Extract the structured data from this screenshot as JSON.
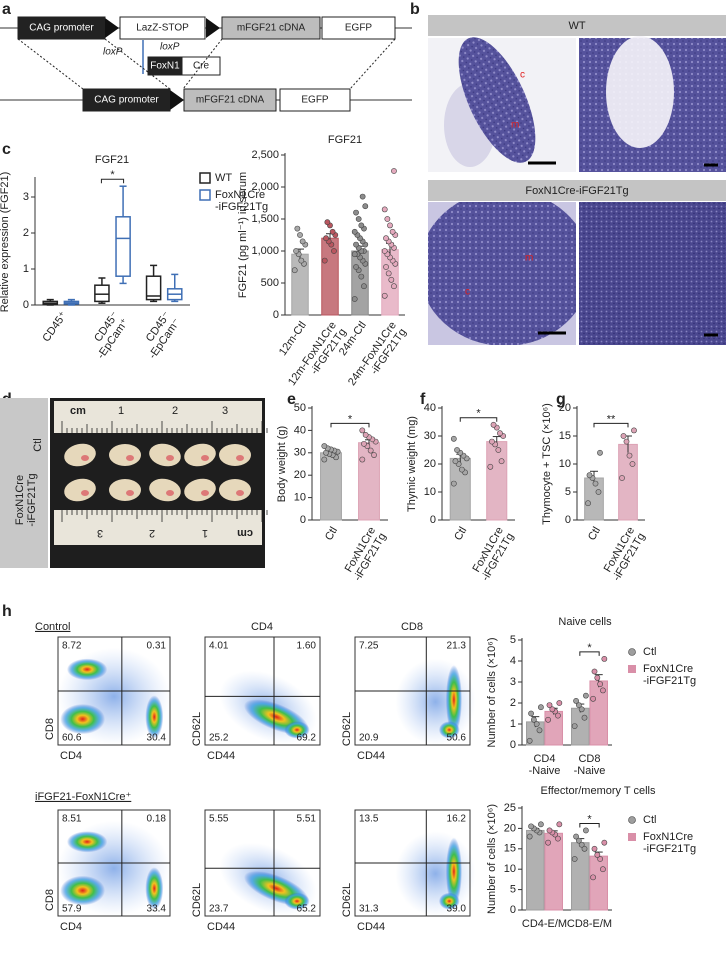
{
  "panel_labels": [
    "a",
    "b",
    "c",
    "d",
    "e",
    "f",
    "g",
    "h"
  ],
  "construct": {
    "row1": [
      "CAG promoter",
      "LazZ-STOP",
      "mFGF21 cDNA",
      "EGFP"
    ],
    "loxp": [
      "loxP",
      "loxP"
    ],
    "driver": [
      "FoxN1",
      "Cre"
    ],
    "row2": [
      "CAG promoter",
      "mFGF21 cDNA",
      "EGFP"
    ]
  },
  "histology": {
    "groups": [
      "WT",
      "FoxN1Cre-iFGF21Tg"
    ],
    "region_labels": [
      [
        "c",
        "m"
      ],
      [
        "m",
        "c"
      ]
    ]
  },
  "photo": {
    "groups": [
      "Ctl",
      "FoxN1Cre-iFGF21Tg"
    ],
    "ruler_unit": "cm",
    "ruler_marks": [
      "1",
      "2",
      "3"
    ]
  },
  "flow": {
    "groups": [
      "Control",
      "iFGF21-FoxN1Cre⁺"
    ],
    "titles": [
      "CD4",
      "CD8"
    ],
    "plots": [
      {
        "x": "CD4",
        "y": "CD8",
        "quadrants": [
          "8.72",
          "0.31",
          "60.6",
          "30.4"
        ]
      },
      {
        "x": "CD44",
        "y": "CD62L",
        "quadrants": [
          "4.01",
          "1.60",
          "25.2",
          "69.2"
        ]
      },
      {
        "x": "CD44",
        "y": "CD62L",
        "quadrants": [
          "7.25",
          "21.3",
          "20.9",
          "50.6"
        ]
      },
      {
        "x": "CD4",
        "y": "CD8",
        "quadrants": [
          "8.51",
          "0.18",
          "57.9",
          "33.4"
        ]
      },
      {
        "x": "CD44",
        "y": "CD62L",
        "quadrants": [
          "5.55",
          "5.51",
          "23.7",
          "65.2"
        ]
      },
      {
        "x": "CD44",
        "y": "CD62L",
        "quadrants": [
          "13.5",
          "16.2",
          "31.3",
          "39.0"
        ]
      }
    ]
  },
  "chart_data": [
    {
      "type": "box",
      "title": "FGF21",
      "ylabel": "Relative expression (FGF21)",
      "categories": [
        "CD45⁺",
        "CD45⁻-EpCam⁺",
        "CD45⁻-EpCam⁻"
      ],
      "series": [
        {
          "name": "WT",
          "color": "#222222",
          "min": [
            0,
            0.05,
            0.1
          ],
          "q1": [
            0.02,
            0.1,
            0.15
          ],
          "median": [
            0.05,
            0.3,
            0.25
          ],
          "q3": [
            0.1,
            0.55,
            0.8
          ],
          "max": [
            0.15,
            0.75,
            1.1
          ]
        },
        {
          "name": "FoxN1Cre-iFGF21Tg",
          "color": "#3f6fb5",
          "min": [
            0,
            0.6,
            0.1
          ],
          "q1": [
            0.03,
            0.8,
            0.15
          ],
          "median": [
            0.06,
            1.85,
            0.3
          ],
          "q3": [
            0.1,
            2.45,
            0.45
          ],
          "max": [
            0.15,
            3.3,
            0.85
          ]
        }
      ],
      "ylim": [
        0,
        3.5
      ],
      "yticks": [
        0,
        1,
        2,
        3
      ],
      "annotation": "*",
      "legend": "right"
    },
    {
      "type": "bar",
      "title": "FGF21",
      "ylabel": "FGF21 (pg ml⁻¹) in serum",
      "categories": [
        "12m-Ctl",
        "12m-FoxN1Cre-iFGF21Tg",
        "24m-Ctl",
        "24m-FoxN1Cre-iFGF21Tg"
      ],
      "values": [
        950,
        1200,
        1000,
        1020
      ],
      "errors": [
        80,
        70,
        75,
        100
      ],
      "colors": [
        "#a8a8a8",
        "#b9565f",
        "#8c8c8c",
        "#e4a9bd"
      ],
      "points": [
        [
          700,
          800,
          850,
          950,
          1000,
          1100,
          1150,
          1250,
          1350
        ],
        [
          850,
          1000,
          1100,
          1150,
          1200,
          1250,
          1300,
          1400,
          1450
        ],
        [
          250,
          450,
          600,
          700,
          750,
          800,
          850,
          900,
          950,
          950,
          1000,
          1000,
          1050,
          1100,
          1100,
          1150,
          1200,
          1250,
          1300,
          1350,
          1400,
          1500,
          1600,
          1700,
          1850
        ],
        [
          300,
          450,
          550,
          650,
          750,
          800,
          850,
          900,
          950,
          1000,
          1050,
          1100,
          1150,
          1200,
          1250,
          1300,
          1400,
          1500,
          1650,
          2250
        ]
      ],
      "ylim": [
        0,
        2500
      ],
      "yticks": [
        0,
        500,
        {
          "value": 1000,
          "label": "1,000"
        },
        {
          "value": 1500,
          "label": "1,500"
        },
        {
          "value": 2000,
          "label": "2,000"
        },
        {
          "value": 2500,
          "label": "2,500"
        }
      ]
    },
    {
      "type": "bar",
      "ylabel": "Body weight (g)",
      "categories": [
        "Ctl",
        "FoxN1Cre-iFGF21Tg"
      ],
      "values": [
        30,
        34.5
      ],
      "errors": [
        0.6,
        1.3
      ],
      "colors": [
        "#a6a6a6",
        "#dca3b5"
      ],
      "points": [
        [
          27,
          28,
          29,
          29.5,
          30,
          30.5,
          31,
          31.5,
          32,
          33
        ],
        [
          27,
          29,
          31,
          33,
          34,
          35,
          36,
          37,
          38,
          40
        ]
      ],
      "ylim": [
        0,
        50
      ],
      "yticks": [
        0,
        10,
        20,
        30,
        40,
        50
      ],
      "annotation": "*"
    },
    {
      "type": "bar",
      "ylabel": "Thymic weight (mg)",
      "categories": [
        "Ctl",
        "FoxN1Cre-iFGF21Tg"
      ],
      "values": [
        22,
        28
      ],
      "errors": [
        1.5,
        1.8
      ],
      "colors": [
        "#a6a6a6",
        "#dca3b5"
      ],
      "points": [
        [
          13,
          17,
          18,
          20,
          21,
          22,
          23,
          24,
          25,
          29
        ],
        [
          19,
          21,
          25,
          27,
          28,
          30,
          31,
          33,
          34
        ]
      ],
      "ylim": [
        0,
        40
      ],
      "yticks": [
        0,
        10,
        20,
        30,
        40
      ],
      "annotation": "*"
    },
    {
      "type": "bar",
      "ylabel": "Thymocyte + TSC (×10⁶)",
      "categories": [
        "Ctl",
        "FoxN1Cre-iFGF21Tg"
      ],
      "values": [
        7.5,
        13.5
      ],
      "errors": [
        1.2,
        1.5
      ],
      "colors": [
        "#a6a6a6",
        "#dca3b5"
      ],
      "points": [
        [
          3,
          5,
          6.5,
          7.5,
          8,
          12
        ],
        [
          7.5,
          10,
          11.5,
          14,
          15,
          16
        ]
      ],
      "ylim": [
        0,
        20
      ],
      "yticks": [
        0,
        5,
        10,
        15,
        20
      ],
      "annotation": "**"
    },
    {
      "type": "bar",
      "title": "Naive cells",
      "ylabel": "Number of cells (×10⁶)",
      "categories": [
        "CD4-Naive",
        "CD8-Naive"
      ],
      "series": [
        {
          "name": "Ctl",
          "color": "#9e9e9e",
          "values": [
            1.1,
            1.75
          ],
          "errors": [
            0.25,
            0.2
          ],
          "points": [
            [
              0.2,
              0.7,
              1.0,
              1.2,
              1.5,
              1.8
            ],
            [
              0.9,
              1.3,
              1.7,
              1.9,
              2.1,
              2.35
            ]
          ]
        },
        {
          "name": "FoxN1Cre-iFGF21Tg",
          "color": "#d98fa8",
          "values": [
            1.6,
            3.05
          ],
          "errors": [
            0.15,
            0.3
          ],
          "points": [
            [
              1.2,
              1.4,
              1.6,
              1.7,
              1.9,
              2.0
            ],
            [
              2.2,
              2.6,
              2.9,
              3.2,
              3.5,
              4.1
            ]
          ]
        }
      ],
      "ylim": [
        0,
        5
      ],
      "yticks": [
        0,
        1,
        2,
        3,
        4,
        5
      ],
      "annotation": "*",
      "legend": "right"
    },
    {
      "type": "bar",
      "title": "Effector/memory T cells",
      "ylabel": "Number of cells (×10⁶)",
      "categories": [
        "CD4-E/M",
        "CD8-E/M"
      ],
      "series": [
        {
          "name": "Ctl",
          "color": "#9e9e9e",
          "values": [
            19.5,
            16.5
          ],
          "errors": [
            0.5,
            1
          ],
          "points": [
            [
              18,
              19,
              19.5,
              20,
              20.5,
              21
            ],
            [
              12.5,
              15,
              16,
              17,
              18,
              19.5
            ]
          ]
        },
        {
          "name": "FoxN1Cre-iFGF21Tg",
          "color": "#d98fa8",
          "values": [
            18.8,
            13.2
          ],
          "errors": [
            0.6,
            1
          ],
          "points": [
            [
              16.5,
              17.5,
              18.5,
              19,
              19.5,
              21
            ],
            [
              8,
              10,
              12.5,
              13.5,
              15,
              16.5
            ]
          ]
        }
      ],
      "ylim": [
        0,
        25
      ],
      "yticks": [
        0,
        5,
        10,
        15,
        20,
        25
      ],
      "annotation": "*",
      "legend": "right"
    }
  ]
}
